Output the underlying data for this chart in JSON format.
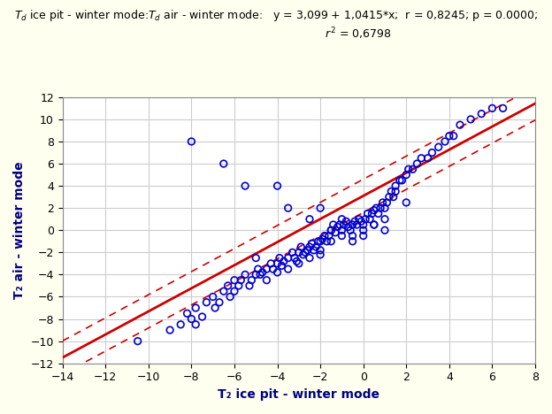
{
  "title_line1": "T₂ ice pit - winter mode:T₂ air - winter mode:   y = 3,099 + 1,0415*x;  r = 0,8245; p = 0.0000;",
  "title_line2": "r² = 0,6798",
  "xlabel": "T₂ ice pit - winter mode",
  "ylabel": "T₂ air - winter mode",
  "xlim": [
    -14,
    8
  ],
  "ylim": [
    -12,
    12
  ],
  "xticks": [
    -14,
    -12,
    -10,
    -8,
    -6,
    -4,
    -2,
    0,
    2,
    4,
    6,
    8
  ],
  "yticks": [
    -12,
    -10,
    -8,
    -6,
    -4,
    -2,
    0,
    2,
    4,
    6,
    8,
    10,
    12
  ],
  "regression_slope": 1.0415,
  "regression_intercept": 3.099,
  "regression_color": "#cc0000",
  "ci_color": "#cc0000",
  "scatter_color": "#0000cc",
  "background_color": "#fffff0",
  "plot_bg_color": "#ffffff",
  "grid_color": "#cccccc",
  "scatter_x": [
    -10.5,
    -9.0,
    -8.5,
    -8.2,
    -8.0,
    -7.8,
    -7.5,
    -7.3,
    -7.0,
    -6.9,
    -6.7,
    -6.5,
    -6.3,
    -6.2,
    -6.0,
    -5.8,
    -5.7,
    -5.5,
    -5.3,
    -5.2,
    -5.0,
    -4.9,
    -4.8,
    -4.7,
    -4.5,
    -4.5,
    -4.3,
    -4.2,
    -4.0,
    -4.0,
    -3.9,
    -3.8,
    -3.7,
    -3.5,
    -3.5,
    -3.3,
    -3.2,
    -3.1,
    -3.0,
    -3.0,
    -2.9,
    -2.8,
    -2.7,
    -2.6,
    -2.5,
    -2.5,
    -2.4,
    -2.3,
    -2.2,
    -2.1,
    -2.0,
    -2.0,
    -2.0,
    -1.9,
    -1.8,
    -1.7,
    -1.6,
    -1.5,
    -1.5,
    -1.4,
    -1.3,
    -1.2,
    -1.1,
    -1.0,
    -1.0,
    -0.9,
    -0.8,
    -0.7,
    -0.6,
    -0.5,
    -0.5,
    -0.4,
    -0.3,
    -0.2,
    -0.1,
    0.0,
    0.0,
    0.1,
    0.2,
    0.3,
    0.4,
    0.5,
    0.5,
    0.6,
    0.7,
    0.8,
    0.9,
    1.0,
    1.0,
    1.1,
    1.2,
    1.3,
    1.4,
    1.5,
    1.5,
    1.7,
    1.8,
    2.0,
    2.1,
    2.3,
    2.5,
    2.7,
    3.0,
    3.2,
    3.5,
    3.8,
    4.0,
    4.2,
    4.5,
    5.0,
    5.5,
    6.0,
    6.5,
    -7.8,
    -6.0,
    -5.0,
    -4.0,
    -2.0,
    -1.0,
    0.5,
    -8.0,
    -6.5,
    -5.5,
    -3.5,
    -2.5,
    -1.5,
    -0.5,
    0.0,
    1.0,
    2.0
  ],
  "scatter_y": [
    -10.0,
    -9.0,
    -8.5,
    -7.5,
    -8.0,
    -8.5,
    -7.8,
    -6.5,
    -6.0,
    -7.0,
    -6.5,
    -5.5,
    -5.0,
    -6.0,
    -5.5,
    -5.0,
    -4.5,
    -4.0,
    -5.0,
    -4.5,
    -4.0,
    -3.5,
    -4.0,
    -3.8,
    -3.5,
    -4.5,
    -3.0,
    -3.5,
    -3.0,
    -3.8,
    -2.5,
    -3.2,
    -2.8,
    -2.5,
    -3.5,
    -2.0,
    -2.5,
    -2.8,
    -2.0,
    -3.0,
    -1.5,
    -2.2,
    -2.0,
    -1.8,
    -1.5,
    -2.5,
    -1.2,
    -1.8,
    -1.5,
    -1.0,
    -1.0,
    -1.8,
    -2.2,
    -0.8,
    -0.5,
    -1.0,
    -0.5,
    0.0,
    -1.0,
    0.5,
    -0.2,
    0.3,
    0.5,
    0.0,
    -0.5,
    0.5,
    0.8,
    0.3,
    0.0,
    0.5,
    -0.5,
    0.8,
    0.5,
    1.0,
    0.8,
    0.5,
    0.0,
    1.0,
    1.5,
    1.0,
    1.5,
    1.8,
    0.5,
    2.0,
    1.5,
    2.0,
    2.5,
    2.0,
    1.0,
    2.5,
    3.0,
    3.5,
    3.0,
    4.0,
    3.5,
    4.5,
    4.5,
    5.0,
    5.5,
    5.5,
    6.0,
    6.5,
    6.5,
    7.0,
    7.5,
    8.0,
    8.5,
    8.5,
    9.5,
    10.0,
    10.5,
    11.0,
    11.0,
    -7.0,
    -4.5,
    -2.5,
    4.0,
    2.0,
    1.0,
    0.5,
    8.0,
    6.0,
    4.0,
    2.0,
    1.0,
    0.0,
    -1.0,
    -0.5,
    0.0,
    2.5
  ]
}
